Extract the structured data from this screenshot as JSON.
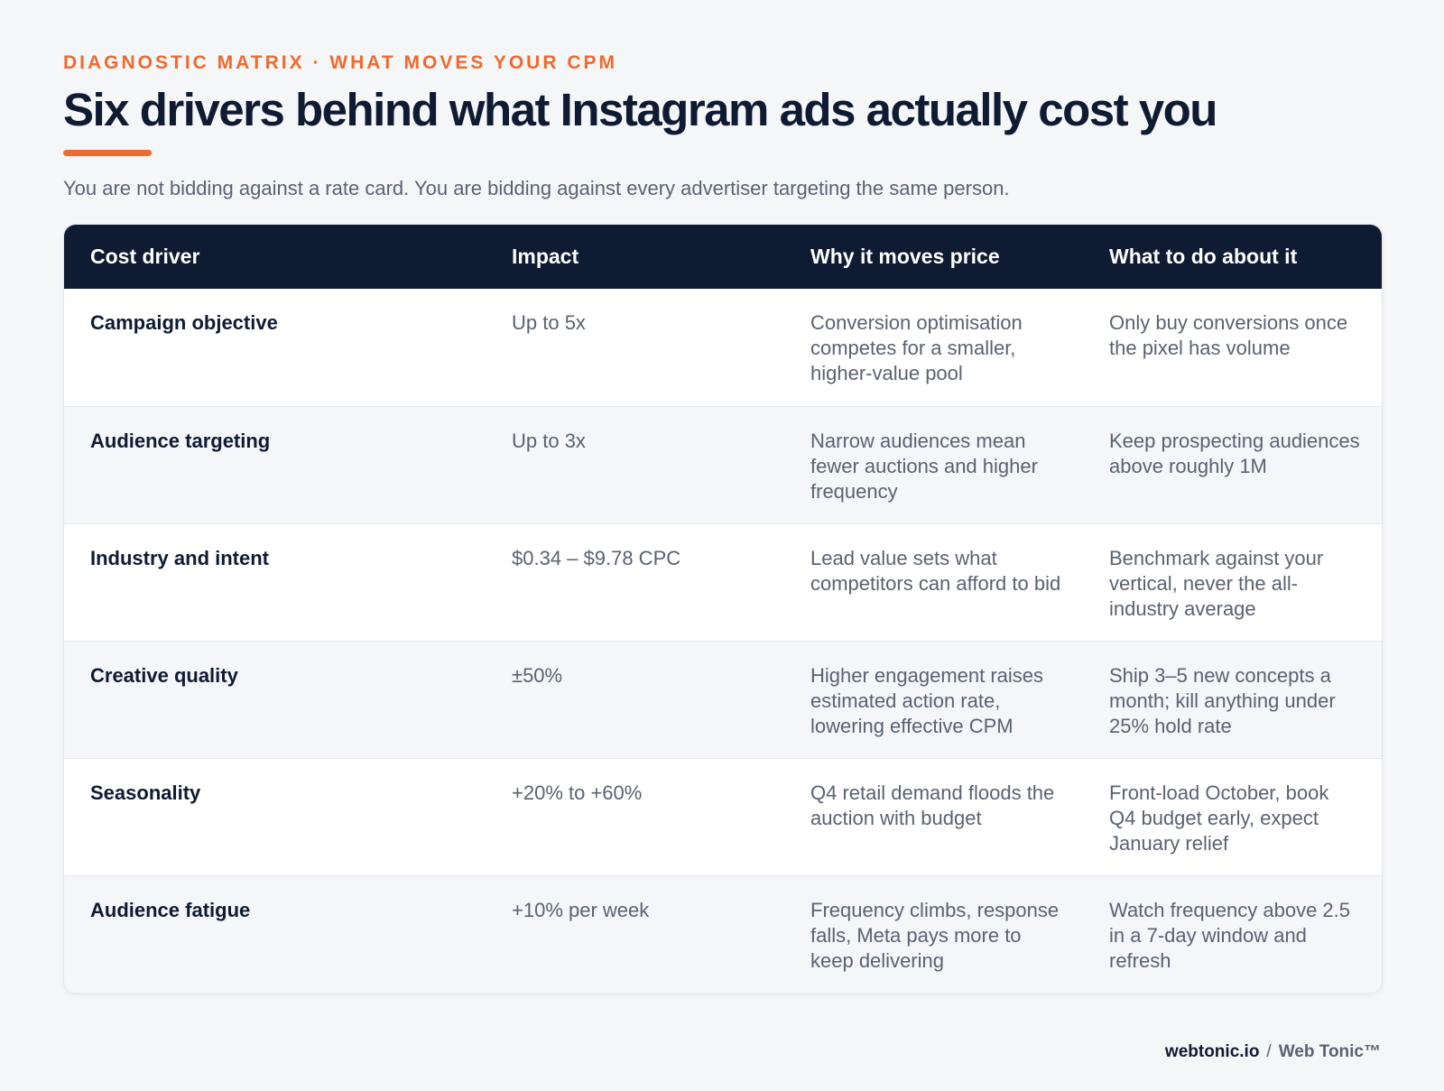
{
  "header": {
    "eyebrow": "DIAGNOSTIC MATRIX · WHAT MOVES YOUR CPM",
    "title": "Six drivers behind what Instagram ads actually cost you",
    "subtitle": "You are not bidding against a rate card. You are bidding against every advertiser targeting the same person."
  },
  "table": {
    "columns": [
      "Cost driver",
      "Impact",
      "Why it moves price",
      "What to do about it"
    ],
    "rows": [
      {
        "driver": "Campaign objective",
        "impact": "Up to 5x",
        "why": "Conversion optimisation competes for a smaller, higher-value pool",
        "action": "Only buy conversions once the pixel has volume"
      },
      {
        "driver": "Audience targeting",
        "impact": "Up to 3x",
        "why": "Narrow audiences mean fewer auctions and higher frequency",
        "action": "Keep prospecting audiences above roughly 1M"
      },
      {
        "driver": "Industry and intent",
        "impact": "$0.34 – $9.78 CPC",
        "why": "Lead value sets what competitors can afford to bid",
        "action": "Benchmark against your vertical, never the all-industry average"
      },
      {
        "driver": "Creative quality",
        "impact": "±50%",
        "why": "Higher engagement raises estimated action rate, lowering effective CPM",
        "action": "Ship 3–5 new concepts a month; kill anything under 25% hold rate"
      },
      {
        "driver": "Seasonality",
        "impact": "+20% to +60%",
        "why": "Q4 retail demand floods the auction with budget",
        "action": "Front-load October, book Q4 budget early, expect January relief"
      },
      {
        "driver": "Audience fatigue",
        "impact": "+10% per week",
        "why": "Frequency climbs, response falls, Meta pays more to keep delivering",
        "action": "Watch frequency above 2.5 in a 7-day window and refresh"
      }
    ]
  },
  "footer": {
    "site": "webtonic.io",
    "separator": "/",
    "brand": "Web Tonic™"
  },
  "colors": {
    "accent": "#ef6a2e",
    "navy": "#0f1b33",
    "muted_text": "#5a6272",
    "background": "#f5f6f8"
  }
}
